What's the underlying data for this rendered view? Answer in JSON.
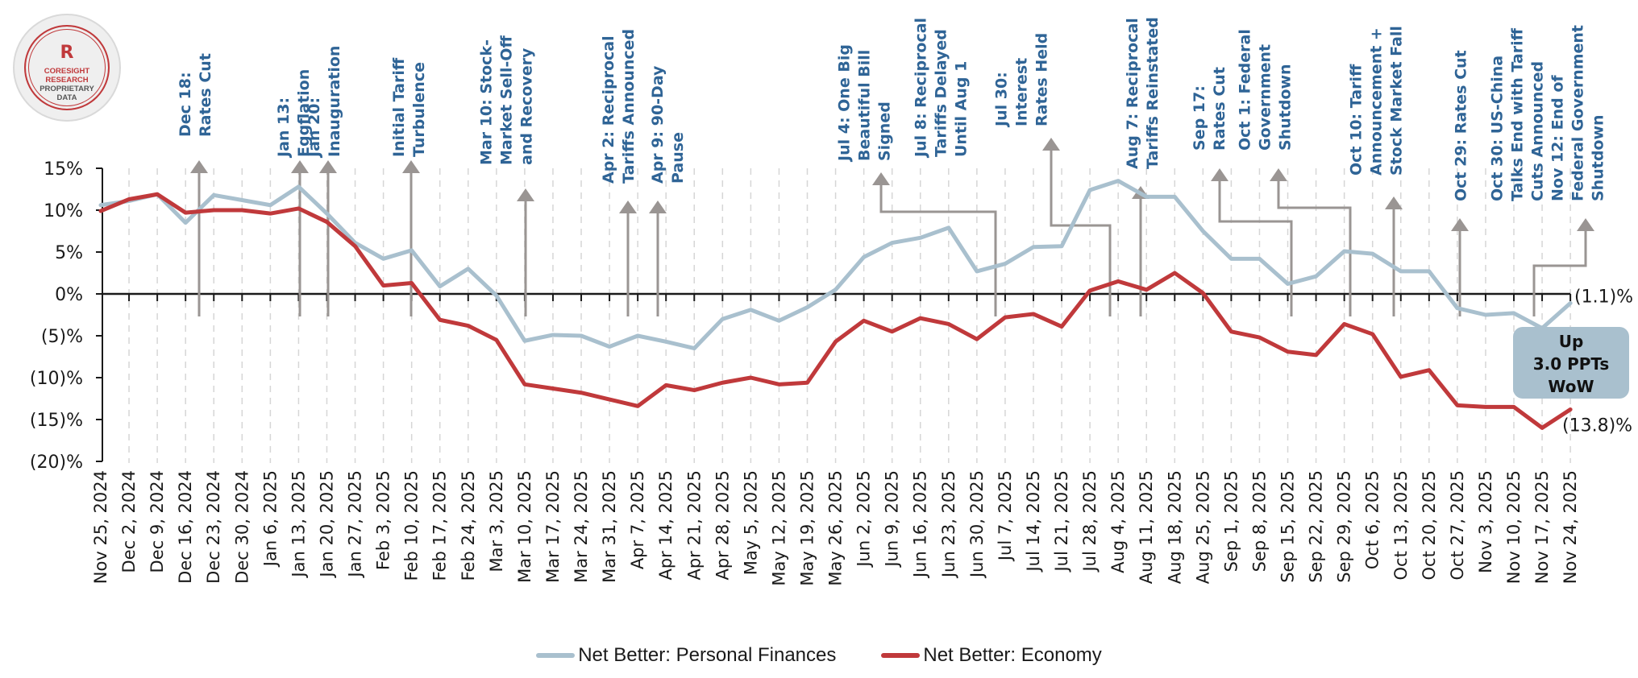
{
  "logo": {
    "glyph": "R",
    "line1": "CORESIGHT",
    "line2": "RESEARCH",
    "line3": "PROPRIETARY",
    "line4": "DATA"
  },
  "colors": {
    "personal_finances": "#a9c0ce",
    "economy": "#c0393b",
    "annotation_text": "#2f6496",
    "annotation_arrow": "#9a9593",
    "callout_bg": "#a9c0ce",
    "axis": "#1a1a1a",
    "grid": "#d6d6d6"
  },
  "chart_data": {
    "type": "line",
    "title": "",
    "xlabel": "",
    "ylabel": "",
    "ylim": [
      -20,
      15
    ],
    "yticks": [
      15,
      10,
      5,
      0,
      -5,
      -10,
      -15,
      -20
    ],
    "ytick_labels": [
      "15%",
      "10%",
      "5%",
      "0%",
      "(5)%",
      "(10)%",
      "(15)%",
      "(20)%"
    ],
    "grid": "vertical dashed",
    "legend_position": "bottom-center",
    "x": [
      "Nov 25, 2024",
      "Dec 2, 2024",
      "Dec 9, 2024",
      "Dec 16, 2024",
      "Dec 23, 2024",
      "Dec 30, 2024",
      "Jan 6, 2025",
      "Jan 13, 2025",
      "Jan 20, 2025",
      "Jan 27, 2025",
      "Feb 3, 2025",
      "Feb 10, 2025",
      "Feb 17, 2025",
      "Feb 24, 2025",
      "Mar 3, 2025",
      "Mar 10, 2025",
      "Mar 17, 2025",
      "Mar 24, 2025",
      "Mar 31, 2025",
      "Apr 7, 2025",
      "Apr 14, 2025",
      "Apr 21, 2025",
      "Apr 28, 2025",
      "May 5, 2025",
      "May 12, 2025",
      "May 19, 2025",
      "May 26, 2025",
      "Jun 2, 2025",
      "Jun 9, 2025",
      "Jun 16, 2025",
      "Jun 23, 2025",
      "Jun 30, 2025",
      "Jul 7, 2025",
      "Jul 14, 2025",
      "Jul 21, 2025",
      "Jul 28, 2025",
      "Aug 4, 2025",
      "Aug 11, 2025",
      "Aug 18, 2025",
      "Aug 25, 2025",
      "Sep 1, 2025",
      "Sep 8, 2025",
      "Sep 15, 2025",
      "Sep 22, 2025",
      "Sep 29, 2025",
      "Oct 6, 2025",
      "Oct 13, 2025",
      "Oct 20, 2025",
      "Oct 27, 2025",
      "Nov 3, 2025",
      "Nov 10, 2025",
      "Nov 17, 2025",
      "Nov 24, 2025"
    ],
    "series": [
      {
        "name": "Net Better: Personal Finances",
        "color": "#a9c0ce",
        "values": [
          10.6,
          11.1,
          11.9,
          8.5,
          11.8,
          11.2,
          10.6,
          12.8,
          9.6,
          6.1,
          4.2,
          5.2,
          0.9,
          3.0,
          -0.2,
          -5.6,
          -4.9,
          -5.0,
          -6.3,
          -5.0,
          -5.7,
          -6.5,
          -3.0,
          -1.9,
          -3.2,
          -1.6,
          0.5,
          4.4,
          6.1,
          6.7,
          7.9,
          2.7,
          3.6,
          5.6,
          5.7,
          12.4,
          13.5,
          11.6,
          11.6,
          7.5,
          4.2,
          4.2,
          1.2,
          2.1,
          5.1,
          4.8,
          2.7,
          2.7,
          -1.7,
          -2.5,
          -2.3,
          -4.1,
          -1.1
        ]
      },
      {
        "name": "Net Better: Economy",
        "color": "#c0393b",
        "values": [
          9.9,
          11.3,
          11.9,
          9.7,
          10.0,
          10.0,
          9.6,
          10.2,
          8.6,
          5.7,
          1.0,
          1.3,
          -3.1,
          -3.8,
          -5.5,
          -10.8,
          -11.3,
          -11.8,
          -12.6,
          -13.4,
          -10.9,
          -11.5,
          -10.6,
          -10.0,
          -10.8,
          -10.6,
          -5.7,
          -3.2,
          -4.5,
          -2.9,
          -3.6,
          -5.4,
          -2.8,
          -2.4,
          -3.9,
          0.4,
          1.5,
          0.5,
          2.5,
          0.1,
          -4.5,
          -5.2,
          -6.9,
          -7.3,
          -3.6,
          -4.8,
          -9.9,
          -9.1,
          -13.3,
          -13.5,
          -13.5,
          -16.0,
          -13.8
        ]
      }
    ],
    "end_labels": [
      {
        "series": "Net Better: Personal Finances",
        "text": "(1.1)%"
      },
      {
        "series": "Net Better: Economy",
        "text": "(13.8)%"
      }
    ],
    "callout": {
      "lines": [
        "Up",
        "3.0 PPTs",
        "WoW"
      ],
      "series": "Net Better: Personal Finances"
    },
    "annotations": [
      {
        "date": "Dec 18",
        "week_index": 3.3,
        "lines": [
          "Dec 18:",
          "Rates Cut"
        ]
      },
      {
        "date": "Jan 13",
        "week_index": 7.0,
        "lines": [
          "Jan 13:",
          "Eggflation"
        ]
      },
      {
        "date": "Jan 20",
        "week_index": 8.0,
        "lines": [
          "Jan 20:",
          "Inauguration"
        ]
      },
      {
        "date": "Feb",
        "week_index": 10.9,
        "lines": [
          "Initial Tariff",
          "Turbulence"
        ]
      },
      {
        "date": "Mar 10",
        "week_index": 15.0,
        "lines": [
          "Mar 10: Stock-",
          "Market Sell-Off",
          "and Recovery"
        ]
      },
      {
        "date": "Apr 2",
        "week_index": 18.65,
        "lines": [
          "Apr 2: Reciprocal",
          "Tariffs Announced"
        ]
      },
      {
        "date": "Apr 9",
        "week_index": 19.7,
        "lines": [
          "Apr 9: 90-Day",
          "Pause"
        ]
      },
      {
        "date": "Jul 4",
        "week_index": 31.4,
        "lines": [
          "Jul 4: One Big",
          "Beautiful Bill",
          "Signed"
        ]
      },
      {
        "date": "Jul 8",
        "week_index": 31.4,
        "lines": [
          "Jul 8: Reciprocal",
          "Tariffs Delayed",
          "Until Aug 1"
        ]
      },
      {
        "date": "Jul 30",
        "week_index": 35.3,
        "lines": [
          "Jul 30:",
          "Interest",
          "Rates Held"
        ]
      },
      {
        "date": "Aug 7",
        "week_index": 36.4,
        "lines": [
          "Aug 7: Reciprocal",
          "Tariffs Reinstated"
        ]
      },
      {
        "date": "Sep 17",
        "week_index": 42.3,
        "lines": [
          "Sep 17:",
          "Rates Cut"
        ]
      },
      {
        "date": "Oct 1",
        "week_index": 44.3,
        "lines": [
          "Oct 1: Federal",
          "Government",
          "Shutdown"
        ]
      },
      {
        "date": "Oct 10",
        "week_index": 45.9,
        "lines": [
          "Oct 10: Tariff",
          "Announcement +",
          "Stock Market Fall"
        ]
      },
      {
        "date": "Oct 29",
        "week_index": 48.2,
        "lines": [
          "Oct 29: Rates Cut"
        ]
      },
      {
        "date": "Oct 30",
        "week_index": 48.4,
        "lines": [
          "Oct 30: US-China",
          "Talks End with Tariff",
          "Cuts Announced"
        ]
      },
      {
        "date": "Nov 12",
        "week_index": 50.8,
        "lines": [
          "Nov 12: End of",
          "Federal Government",
          "Shutdown"
        ]
      }
    ]
  },
  "legend": [
    {
      "label": "Net Better: Personal Finances",
      "color": "#a9c0ce"
    },
    {
      "label": "Net Better: Economy",
      "color": "#c0393b"
    }
  ]
}
